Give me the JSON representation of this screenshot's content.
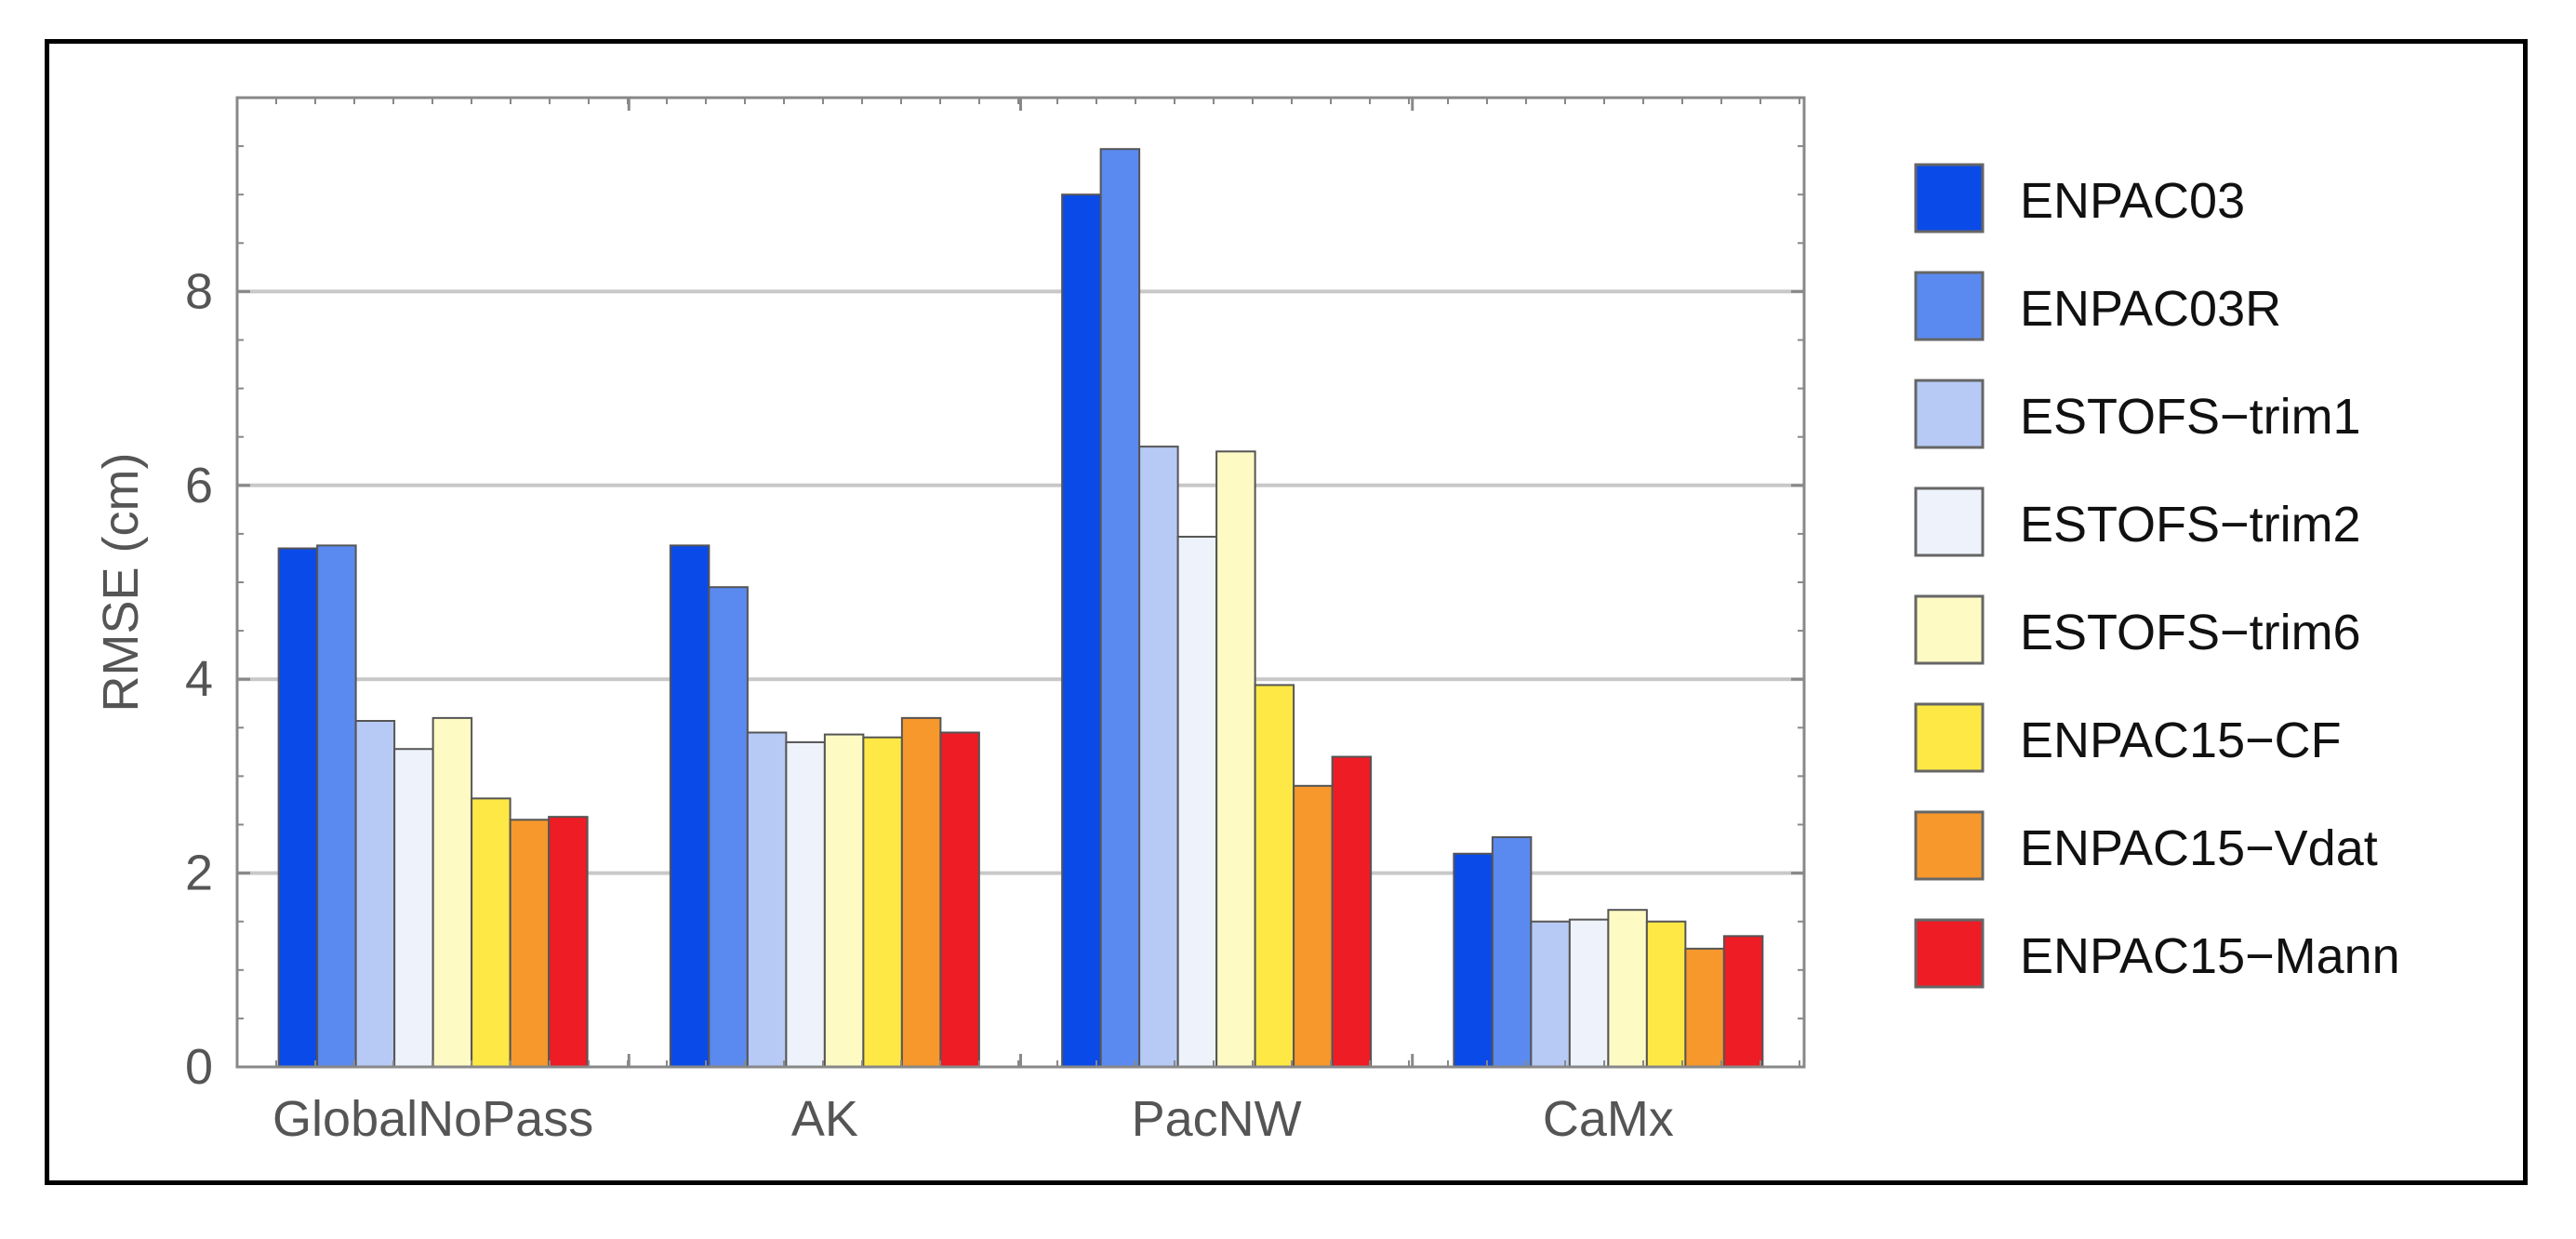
{
  "chart_data": {
    "type": "bar",
    "ylabel": "RMSE (cm)",
    "xlabel": "",
    "ylim": [
      0,
      10
    ],
    "yticks": [
      "0",
      "2",
      "4",
      "6",
      "8"
    ],
    "grid": "horizontal",
    "legend_position": "right",
    "categories": [
      "GlobalNoPass",
      "AK",
      "PacNW",
      "CaMx"
    ],
    "series": [
      {
        "name": "ENPAC03",
        "color": "#0a4ae8",
        "values": [
          5.35,
          5.38,
          9.0,
          2.2
        ]
      },
      {
        "name": "ENPAC03R",
        "color": "#5a8af0",
        "values": [
          5.38,
          4.95,
          9.47,
          2.37
        ]
      },
      {
        "name": "ESTOFS−trim1",
        "color": "#b7caf6",
        "values": [
          3.57,
          3.45,
          6.4,
          1.5
        ]
      },
      {
        "name": "ESTOFS−trim2",
        "color": "#eef3fb",
        "values": [
          3.28,
          3.35,
          5.47,
          1.52
        ]
      },
      {
        "name": "ESTOFS−trim6",
        "color": "#fdfac4",
        "values": [
          3.6,
          3.43,
          6.35,
          1.62
        ]
      },
      {
        "name": "ENPAC15−CF",
        "color": "#fde845",
        "values": [
          2.77,
          3.4,
          3.94,
          1.5
        ]
      },
      {
        "name": "ENPAC15−Vdat",
        "color": "#f7982c",
        "values": [
          2.55,
          3.6,
          2.9,
          1.22
        ]
      },
      {
        "name": "ENPAC15−Mann",
        "color": "#ee1c25",
        "values": [
          2.58,
          3.45,
          3.2,
          1.35
        ]
      }
    ]
  }
}
